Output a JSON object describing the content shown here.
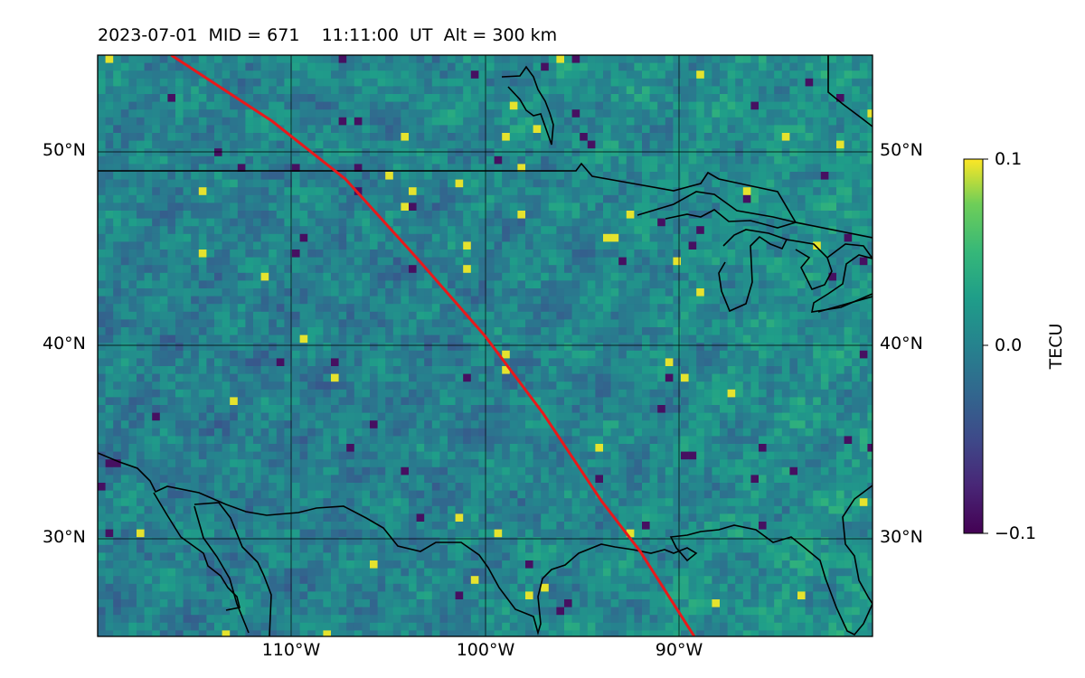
{
  "title": {
    "date": "2023-07-01",
    "mid": "MID = 671",
    "time": "11:11:00  UT",
    "altitude": "Alt = 300 km"
  },
  "map": {
    "lon_range": [
      -120,
      -80
    ],
    "lat_range": [
      25,
      55
    ],
    "field_name": "TEC perturbation",
    "colormap": "viridis",
    "gridlines": true,
    "lat_ticks": [
      "50°N",
      "40°N",
      "30°N"
    ],
    "lon_ticks": [
      "110°W",
      "100°W",
      "90°W"
    ],
    "track_color": "#e8191b",
    "track_points": [
      [
        -116.2,
        55.0
      ],
      [
        -111.0,
        51.6
      ],
      [
        -107.2,
        48.6
      ],
      [
        -103.5,
        44.5
      ],
      [
        -100.0,
        40.5
      ],
      [
        -97.0,
        36.5
      ],
      [
        -94.0,
        32.0
      ],
      [
        -92.0,
        29.4
      ],
      [
        -89.2,
        25.0
      ]
    ],
    "coastline_color": "#000000",
    "coastline_features": [
      "US–Canada border",
      "Lake Superior",
      "Lake Michigan",
      "Lake Huron",
      "Gulf of Mexico coast",
      "Gulf of California",
      "Isle Royale"
    ]
  },
  "colorbar": {
    "label": "TECU",
    "ticks": [
      "0.1",
      "0.0",
      "−0.1"
    ],
    "vmin": -0.1,
    "vmax": 0.1
  }
}
